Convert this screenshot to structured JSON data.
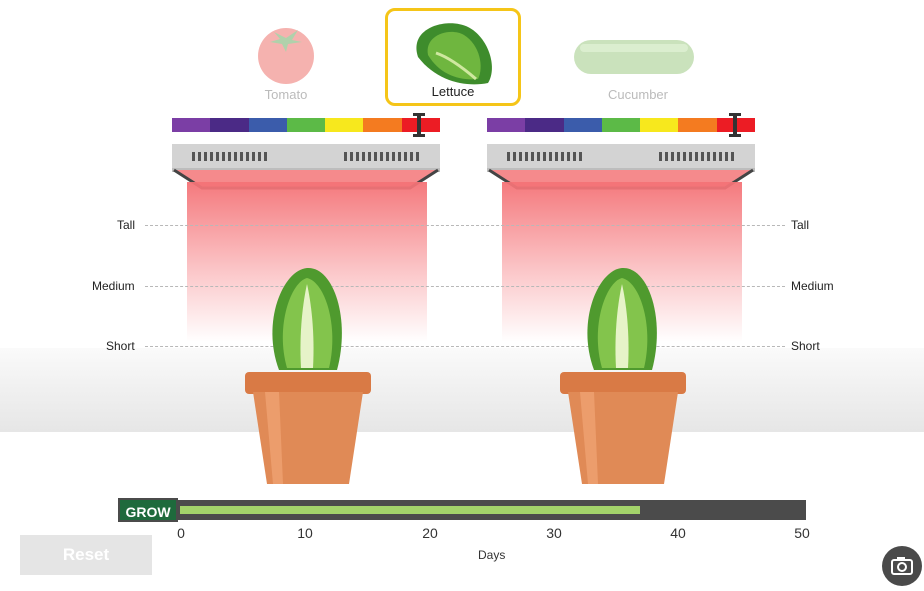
{
  "plants": [
    {
      "name": "Tomato",
      "selected": false
    },
    {
      "name": "Lettuce",
      "selected": true
    },
    {
      "name": "Cucumber",
      "selected": false
    }
  ],
  "spectrum_colors": [
    "#7b3ea5",
    "#4b2a86",
    "#3b5cab",
    "#5cba47",
    "#f7e81d",
    "#f47b20",
    "#ec1c24"
  ],
  "height_labels": {
    "tall": "Tall",
    "medium": "Medium",
    "short": "Short"
  },
  "grow": {
    "button_label": "GROW",
    "progress_days": 37,
    "max_days": 50,
    "ticks": [
      "0",
      "10",
      "20",
      "30",
      "40",
      "50"
    ],
    "axis_title": "Days"
  },
  "reset_label": "Reset",
  "icons": {
    "camera": "camera-icon"
  },
  "colors": {
    "selected_border": "#f5c518",
    "grow_button": "#1e6a3c",
    "progress_fill": "#a3d36a",
    "beam": "#f47276"
  }
}
